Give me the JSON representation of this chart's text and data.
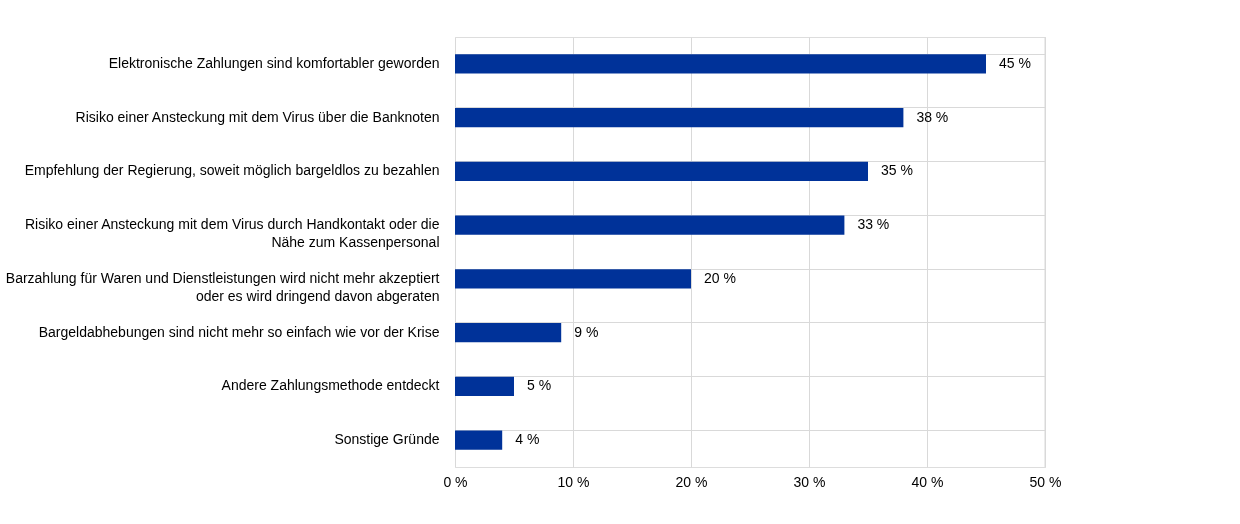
{
  "chart_data": {
    "type": "bar",
    "orientation": "horizontal",
    "categories": [
      "Elektronische Zahlungen sind komfortabler geworden",
      "Risiko einer Ansteckung mit dem Virus über die Banknoten",
      "Empfehlung der Regierung, soweit möglich bargeldlos zu bezahlen",
      "Risiko einer Ansteckung mit dem Virus durch Handkontakt oder die\nNähe zum Kassenpersonal",
      "Barzahlung für Waren und Dienstleistungen wird nicht mehr akzeptiert\noder es wird dringend davon abgeraten",
      "Bargeldabhebungen sind nicht mehr so einfach wie vor der Krise",
      "Andere Zahlungsmethode entdeckt",
      "Sonstige Gründe"
    ],
    "values": [
      45,
      38,
      35,
      33,
      20,
      9,
      5,
      4
    ],
    "value_labels": [
      "45 %",
      "38 %",
      "35 %",
      "33 %",
      "20 %",
      "9 %",
      "5 %",
      "4 %"
    ],
    "color": "#003299",
    "xlim": [
      0,
      50
    ],
    "xticks": [
      {
        "value": 0,
        "label": "0 %"
      },
      {
        "value": 10,
        "label": "10 %"
      },
      {
        "value": 20,
        "label": "20 %"
      },
      {
        "value": 30,
        "label": "30 %"
      },
      {
        "value": 40,
        "label": "40 %"
      },
      {
        "value": 50,
        "label": "50 %"
      }
    ],
    "grid": true
  }
}
